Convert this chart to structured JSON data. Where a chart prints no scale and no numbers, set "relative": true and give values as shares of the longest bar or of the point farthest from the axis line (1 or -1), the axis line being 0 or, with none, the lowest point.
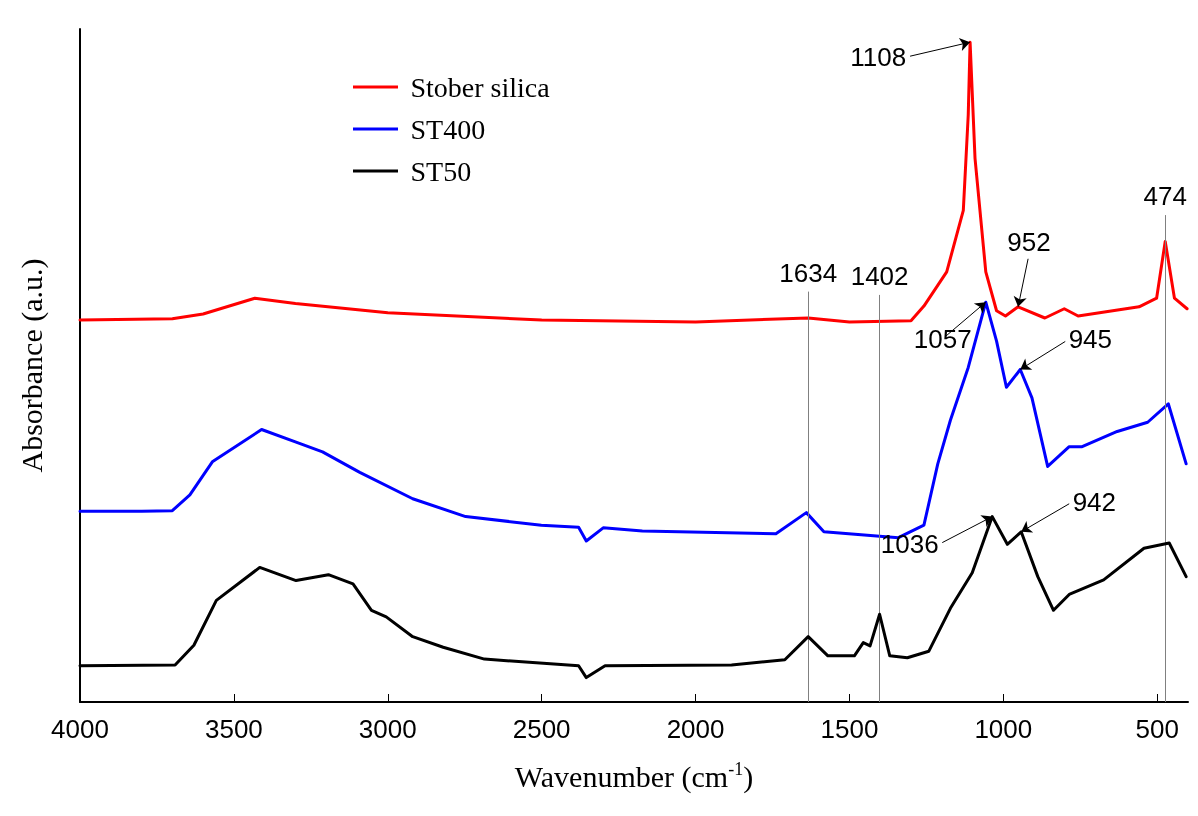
{
  "chart_data": {
    "type": "line",
    "relative": true,
    "xlabel": "Wavenumber (cm$^{-1}$)",
    "ylabel": "Absorbance (a.u.)",
    "xlim": [
      4000,
      400
    ],
    "xticks": [
      4000,
      3500,
      3000,
      2500,
      2000,
      1500,
      1000,
      500
    ],
    "grid": false,
    "legend": "top left",
    "marker": "none",
    "line_style": "solid",
    "series": [
      {
        "name": "Stober silica",
        "color": "#ff0000",
        "x": [
          4000,
          3700,
          3600,
          3432,
          3300,
          3000,
          2500,
          2000,
          1634,
          1500,
          1300,
          1258,
          1184,
          1130,
          1114,
          1108,
          1092,
          1057,
          1022,
          993,
          952,
          865,
          802,
          757,
          559,
          502,
          474,
          444,
          403
        ],
        "values": [
          0.579,
          0.581,
          0.588,
          0.612,
          0.604,
          0.59,
          0.579,
          0.576,
          0.582,
          0.576,
          0.578,
          0.6,
          0.652,
          0.745,
          0.89,
          1.0,
          0.824,
          0.652,
          0.593,
          0.585,
          0.599,
          0.582,
          0.596,
          0.585,
          0.599,
          0.612,
          0.698,
          0.612,
          0.596
        ]
      },
      {
        "name": "ST400",
        "color": "#0000ff",
        "x": [
          4000,
          3800,
          3700,
          3643,
          3570,
          3410,
          3298,
          3212,
          3091,
          2919,
          2747,
          2501,
          2380,
          2355,
          2300,
          2173,
          1739,
          1640,
          1583,
          1341,
          1258,
          1213,
          1172,
          1114,
          1057,
          1022,
          990,
          945,
          907,
          856,
          786,
          744,
          630,
          531,
          464,
          406
        ],
        "values": [
          0.289,
          0.289,
          0.29,
          0.314,
          0.364,
          0.413,
          0.394,
          0.379,
          0.348,
          0.308,
          0.281,
          0.268,
          0.265,
          0.244,
          0.264,
          0.259,
          0.255,
          0.287,
          0.258,
          0.249,
          0.268,
          0.361,
          0.427,
          0.507,
          0.606,
          0.547,
          0.477,
          0.504,
          0.461,
          0.357,
          0.387,
          0.387,
          0.41,
          0.424,
          0.452,
          0.361
        ]
      },
      {
        "name": "ST50",
        "color": "#000000",
        "x": [
          4000,
          3691,
          3630,
          3557,
          3416,
          3298,
          3193,
          3113,
          3053,
          3005,
          2919,
          2820,
          2686,
          2380,
          2355,
          2294,
          1883,
          1710,
          1634,
          1570,
          1484,
          1455,
          1433,
          1402,
          1369,
          1312,
          1242,
          1172,
          1101,
          1036,
          987,
          942,
          888,
          837,
          786,
          674,
          543,
          461,
          406
        ],
        "values": [
          0.055,
          0.056,
          0.086,
          0.154,
          0.204,
          0.184,
          0.193,
          0.179,
          0.139,
          0.129,
          0.099,
          0.083,
          0.065,
          0.055,
          0.037,
          0.055,
          0.056,
          0.064,
          0.099,
          0.07,
          0.07,
          0.09,
          0.085,
          0.133,
          0.07,
          0.067,
          0.077,
          0.142,
          0.196,
          0.281,
          0.239,
          0.258,
          0.19,
          0.139,
          0.163,
          0.185,
          0.233,
          0.241,
          0.19
        ]
      }
    ],
    "ref_lines": [
      {
        "axis": "x",
        "value": 1634,
        "label": "1634",
        "color": "#808080"
      },
      {
        "axis": "x",
        "value": 1402,
        "label": "1402",
        "color": "#808080"
      },
      {
        "axis": "x",
        "value": 474,
        "label": "474",
        "color": "#808080"
      }
    ],
    "annotations": [
      {
        "text": "1108",
        "x": 1108,
        "y": 1.0
      },
      {
        "text": "952",
        "x": 952,
        "y": 0.599
      },
      {
        "text": "1057",
        "x": 1057,
        "y": 0.606
      },
      {
        "text": "945",
        "x": 945,
        "y": 0.504
      },
      {
        "text": "1036",
        "x": 1036,
        "y": 0.281
      },
      {
        "text": "942",
        "x": 942,
        "y": 0.258
      }
    ]
  }
}
